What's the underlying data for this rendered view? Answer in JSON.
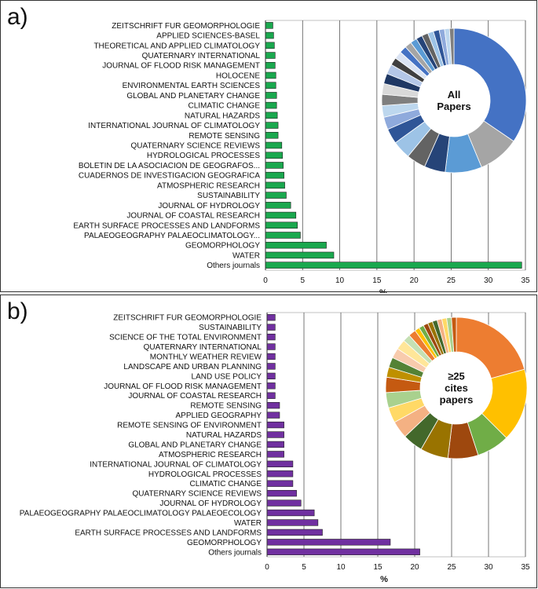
{
  "chart_data": [
    {
      "panel_label": "a)",
      "type": "bar",
      "orientation": "horizontal",
      "categories": [
        "ZEITSCHRIFT FUR GEOMORPHOLOGIE",
        "APPLIED SCIENCES-BASEL",
        "THEORETICAL AND APPLIED CLIMATOLOGY",
        "QUATERNARY INTERNATIONAL",
        "JOURNAL OF FLOOD RISK MANAGEMENT",
        "HOLOCENE",
        "ENVIRONMENTAL EARTH SCIENCES",
        "GLOBAL AND PLANETARY CHANGE",
        "CLIMATIC CHANGE",
        "NATURAL HAZARDS",
        "INTERNATIONAL JOURNAL OF CLIMATOLOGY",
        "REMOTE SENSING",
        "QUATERNARY SCIENCE REVIEWS",
        "HYDROLOGICAL PROCESSES",
        "BOLETIN DE LA ASOCIACION DE GEOGRAFOS...",
        "CUADERNOS DE INVESTIGACION GEOGRAFICA",
        "ATMOSPHERIC RESEARCH",
        "SUSTAINABILITY",
        "JOURNAL OF HYDROLOGY",
        "JOURNAL OF COASTAL RESEARCH",
        "EARTH SURFACE PROCESSES AND LANDFORMS",
        "PALAEOGEOGRAPHY PALAEOCLIMATOLOGY...",
        "GEOMORPHOLOGY",
        "WATER",
        "Others journals"
      ],
      "values": [
        1.0,
        1.1,
        1.2,
        1.3,
        1.3,
        1.4,
        1.4,
        1.5,
        1.5,
        1.6,
        1.7,
        1.7,
        2.2,
        2.3,
        2.4,
        2.5,
        2.6,
        2.8,
        3.4,
        4.1,
        4.3,
        4.7,
        8.2,
        9.2,
        34.5
      ],
      "bar_color": "#1aa84e",
      "xlabel": "%",
      "ylabel": "",
      "xlim": [
        0,
        35
      ],
      "xticks": [
        0,
        5,
        10,
        15,
        20,
        25,
        30,
        35
      ],
      "grid": "vertical",
      "inset_donut": {
        "center_text": [
          "All",
          "Papers"
        ],
        "palette": [
          "#4472c4",
          "#a5a5a5",
          "#5b9bd5",
          "#264478",
          "#636363",
          "#9dc3e6",
          "#2f5597",
          "#8faadc",
          "#bdd7ee",
          "#7f7f7f",
          "#d9d9d9",
          "#1f3864",
          "#b4c7e7",
          "#404040",
          "#dae3f3"
        ]
      }
    },
    {
      "panel_label": "b)",
      "type": "bar",
      "orientation": "horizontal",
      "categories": [
        "ZEITSCHRIFT FUR GEOMORPHOLOGIE",
        "SUSTAINABILITY",
        "SCIENCE OF THE TOTAL ENVIRONMENT",
        "QUATERNARY INTERNATIONAL",
        "MONTHLY WEATHER REVIEW",
        "LANDSCAPE AND URBAN PLANNING",
        "LAND USE POLICY",
        "JOURNAL OF FLOOD RISK MANAGEMENT",
        "JOURNAL OF COASTAL RESEARCH",
        "REMOTE SENSING",
        "APPLIED GEOGRAPHY",
        "REMOTE SENSING OF ENVIRONMENT",
        "NATURAL HAZARDS",
        "GLOBAL AND PLANETARY CHANGE",
        "ATMOSPHERIC RESEARCH",
        "INTERNATIONAL JOURNAL OF CLIMATOLOGY",
        "HYDROLOGICAL PROCESSES",
        "CLIMATIC CHANGE",
        "QUATERNARY SCIENCE REVIEWS",
        "JOURNAL OF HYDROLOGY",
        "PALAEOGEOGRAPHY PALAEOCLIMATOLOGY PALAEOECOLOGY",
        "WATER",
        "EARTH SURFACE PROCESSES AND LANDFORMS",
        "GEOMORPHOLOGY",
        "Others journals"
      ],
      "values": [
        1.1,
        1.1,
        1.1,
        1.1,
        1.1,
        1.1,
        1.1,
        1.1,
        1.1,
        1.7,
        1.7,
        2.3,
        2.3,
        2.3,
        2.3,
        3.5,
        3.5,
        3.5,
        4.0,
        4.6,
        6.4,
        6.9,
        7.5,
        16.7,
        20.7
      ],
      "bar_color": "#7030a0",
      "xlabel": "%",
      "ylabel": "",
      "xlim": [
        0,
        35
      ],
      "xticks": [
        0,
        5,
        10,
        15,
        20,
        25,
        30,
        35
      ],
      "grid": "vertical",
      "inset_donut": {
        "center_text": [
          "≥25",
          "cites",
          "papers"
        ],
        "palette": [
          "#ed7d31",
          "#ffc000",
          "#70ad47",
          "#9e480e",
          "#997300",
          "#43682b",
          "#f4b183",
          "#ffd966",
          "#a9d18e",
          "#c55a11",
          "#bf9000",
          "#548235",
          "#f8cbad",
          "#ffe699",
          "#c5e0b4"
        ]
      }
    }
  ]
}
